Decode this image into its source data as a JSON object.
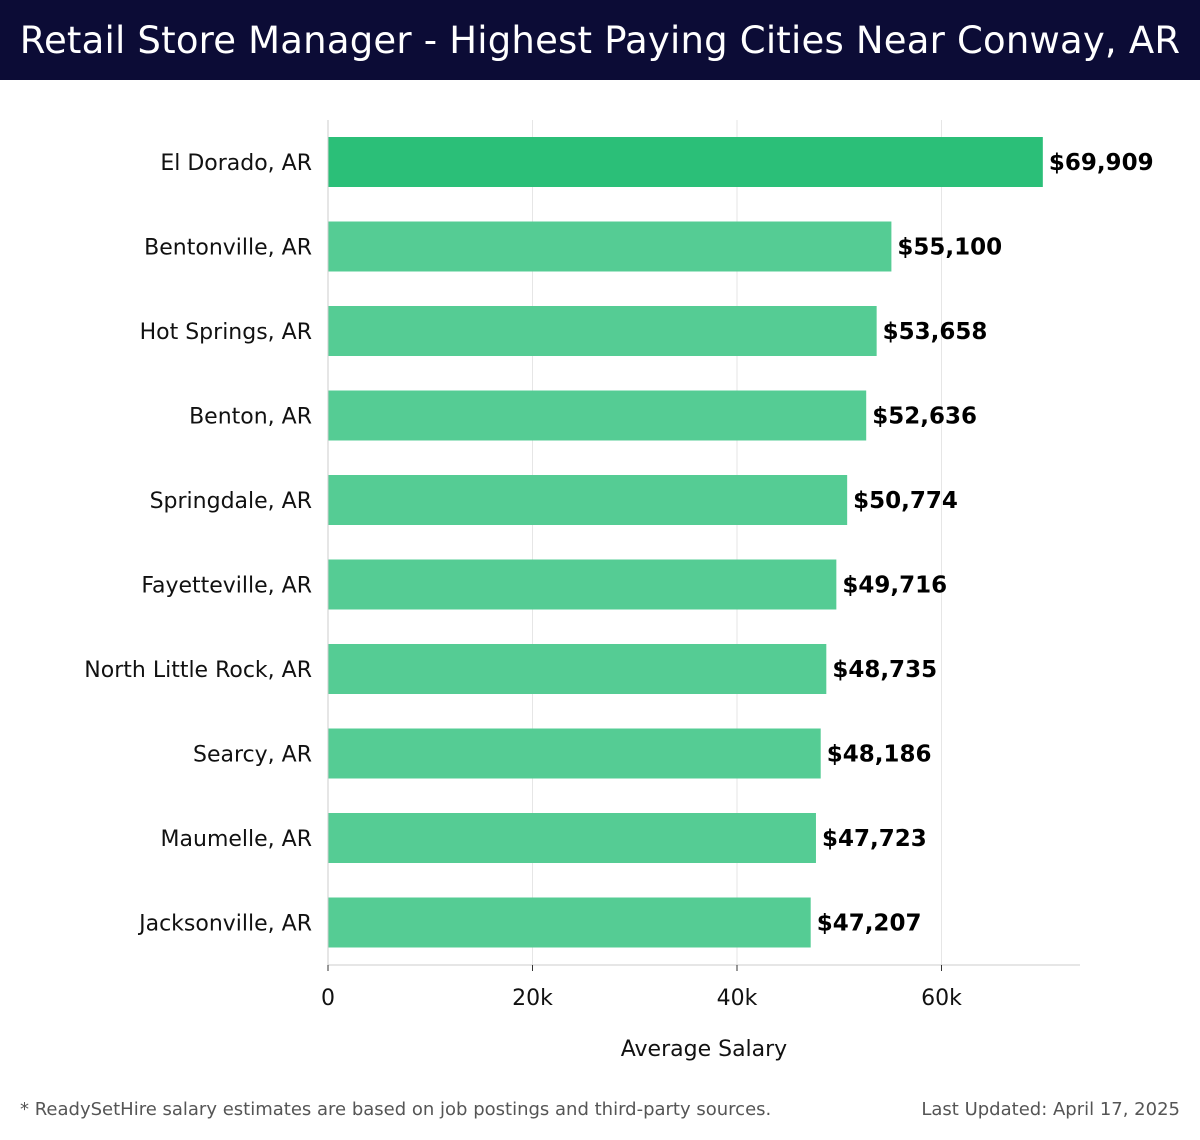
{
  "header": {
    "title": "Retail Store Manager - Highest Paying Cities Near Conway, AR"
  },
  "chart_data": {
    "type": "bar",
    "orientation": "horizontal",
    "categories": [
      "El Dorado, AR",
      "Bentonville, AR",
      "Hot Springs, AR",
      "Benton, AR",
      "Springdale, AR",
      "Fayetteville, AR",
      "North Little Rock, AR",
      "Searcy, AR",
      "Maumelle, AR",
      "Jacksonville, AR"
    ],
    "values": [
      69909,
      55100,
      53658,
      52636,
      50774,
      49716,
      48735,
      48186,
      47723,
      47207
    ],
    "value_labels": [
      "$69,909",
      "$55,100",
      "$53,658",
      "$52,636",
      "$50,774",
      "$49,716",
      "$48,735",
      "$48,186",
      "$47,723",
      "$47,207"
    ],
    "xlabel": "Average Salary",
    "ylabel": "",
    "xlim": [
      0,
      73500
    ],
    "xticks": [
      0,
      20000,
      40000,
      60000
    ],
    "xtick_labels": [
      "0",
      "20k",
      "40k",
      "60k"
    ],
    "grid": "vertical",
    "legend": "none",
    "colors": {
      "highlight_bar": "#2bbf78",
      "bar": "#55cc94",
      "grid": "#e6e6e6",
      "axis": "#cccccc"
    }
  },
  "footer": {
    "note": "* ReadySetHire salary estimates are based on job postings and third-party sources.",
    "updated": "Last Updated: April 17, 2025"
  }
}
